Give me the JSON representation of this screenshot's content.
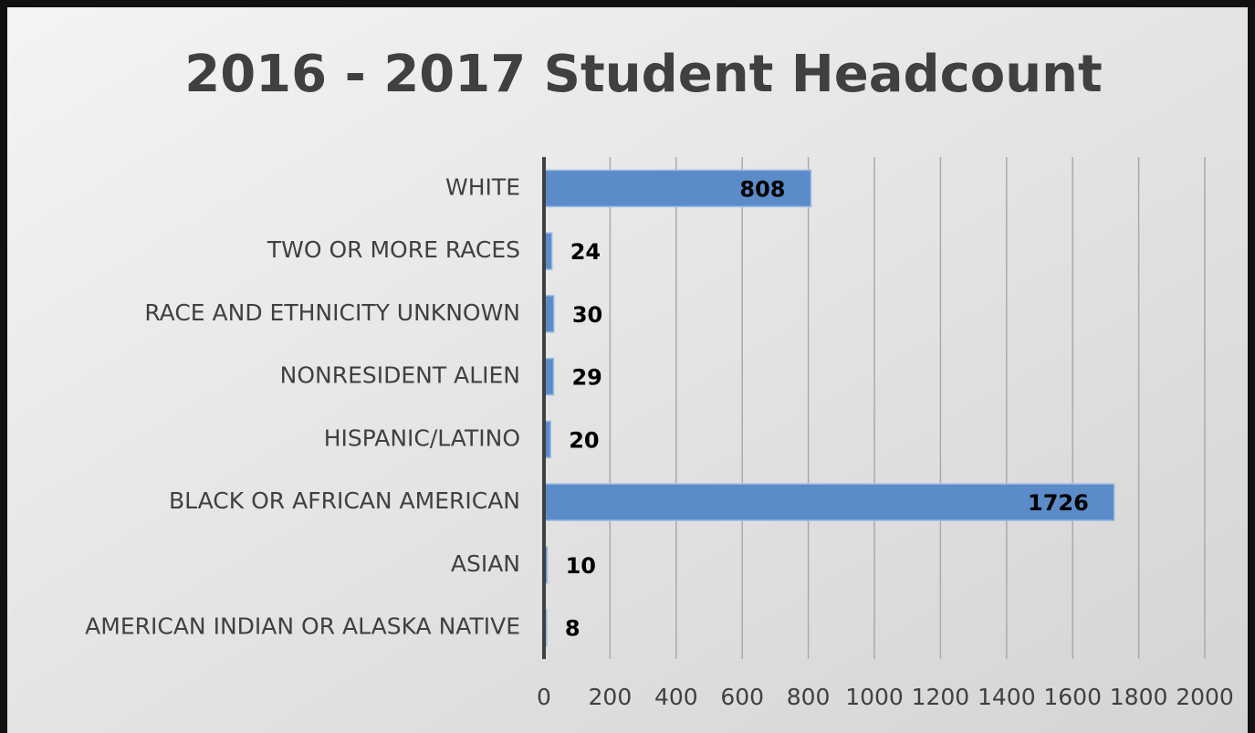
{
  "chart_data": {
    "type": "bar",
    "orientation": "horizontal",
    "title": "2016 - 2017 Student Headcount",
    "categories": [
      "WHITE",
      "TWO OR MORE RACES",
      "RACE AND ETHNICITY UNKNOWN",
      "NONRESIDENT ALIEN",
      "HISPANIC/LATINO",
      "BLACK OR AFRICAN AMERICAN",
      "ASIAN",
      "AMERICAN INDIAN OR ALASKA NATIVE"
    ],
    "values": [
      808,
      24,
      30,
      29,
      20,
      1726,
      10,
      8
    ],
    "color": "#5b8cc9",
    "xlim": [
      0,
      2000
    ],
    "xticks": [
      0,
      200,
      400,
      600,
      800,
      1000,
      1200,
      1400,
      1600,
      1800,
      2000
    ],
    "grid": true
  }
}
